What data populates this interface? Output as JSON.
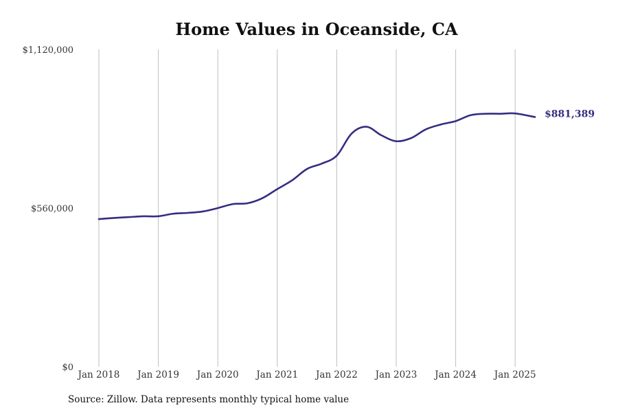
{
  "chart_data": {
    "type": "line",
    "title": "Home Values in Oceanside, CA",
    "xlabel": "",
    "ylabel": "",
    "x_range": [
      "2018-01",
      "2025-12"
    ],
    "ylim": [
      0,
      1120000
    ],
    "y_ticks": [
      {
        "value": 0,
        "label": "$0"
      },
      {
        "value": 560000,
        "label": "$560,000"
      },
      {
        "value": 1120000,
        "label": "$1,120,000"
      }
    ],
    "x_ticks": [
      {
        "value": "2018-01",
        "label": "Jan 2018"
      },
      {
        "value": "2019-01",
        "label": "Jan 2019"
      },
      {
        "value": "2020-01",
        "label": "Jan 2020"
      },
      {
        "value": "2021-01",
        "label": "Jan 2021"
      },
      {
        "value": "2022-01",
        "label": "Jan 2022"
      },
      {
        "value": "2023-01",
        "label": "Jan 2023"
      },
      {
        "value": "2024-01",
        "label": "Jan 2024"
      },
      {
        "value": "2025-01",
        "label": "Jan 2025"
      }
    ],
    "grid": {
      "vertical": true,
      "horizontal": false
    },
    "legend": "none",
    "line_color": "#342d82",
    "end_label": {
      "x": "2025-05",
      "value": 881389,
      "text": "$881,389"
    },
    "series": [
      {
        "x": [
          "2018-01",
          "2018-04",
          "2018-07",
          "2018-10",
          "2019-01",
          "2019-04",
          "2019-07",
          "2019-10",
          "2020-01",
          "2020-04",
          "2020-07",
          "2020-10",
          "2021-01",
          "2021-04",
          "2021-07",
          "2021-10",
          "2022-01",
          "2022-04",
          "2022-07",
          "2022-10",
          "2023-01",
          "2023-04",
          "2023-07",
          "2023-10",
          "2024-01",
          "2024-04",
          "2024-07",
          "2024-10",
          "2025-01",
          "2025-05"
        ],
        "values": [
          521000,
          525000,
          528000,
          531000,
          531000,
          540000,
          543000,
          548000,
          560000,
          574000,
          577000,
          595000,
          627000,
          658000,
          698000,
          717000,
          745000,
          823000,
          847000,
          817000,
          796000,
          807000,
          838000,
          855000,
          867000,
          888000,
          893000,
          893000,
          894000,
          881389
        ]
      }
    ]
  },
  "footer": {
    "source": "Source: Zillow. Data represents monthly typical home value"
  }
}
